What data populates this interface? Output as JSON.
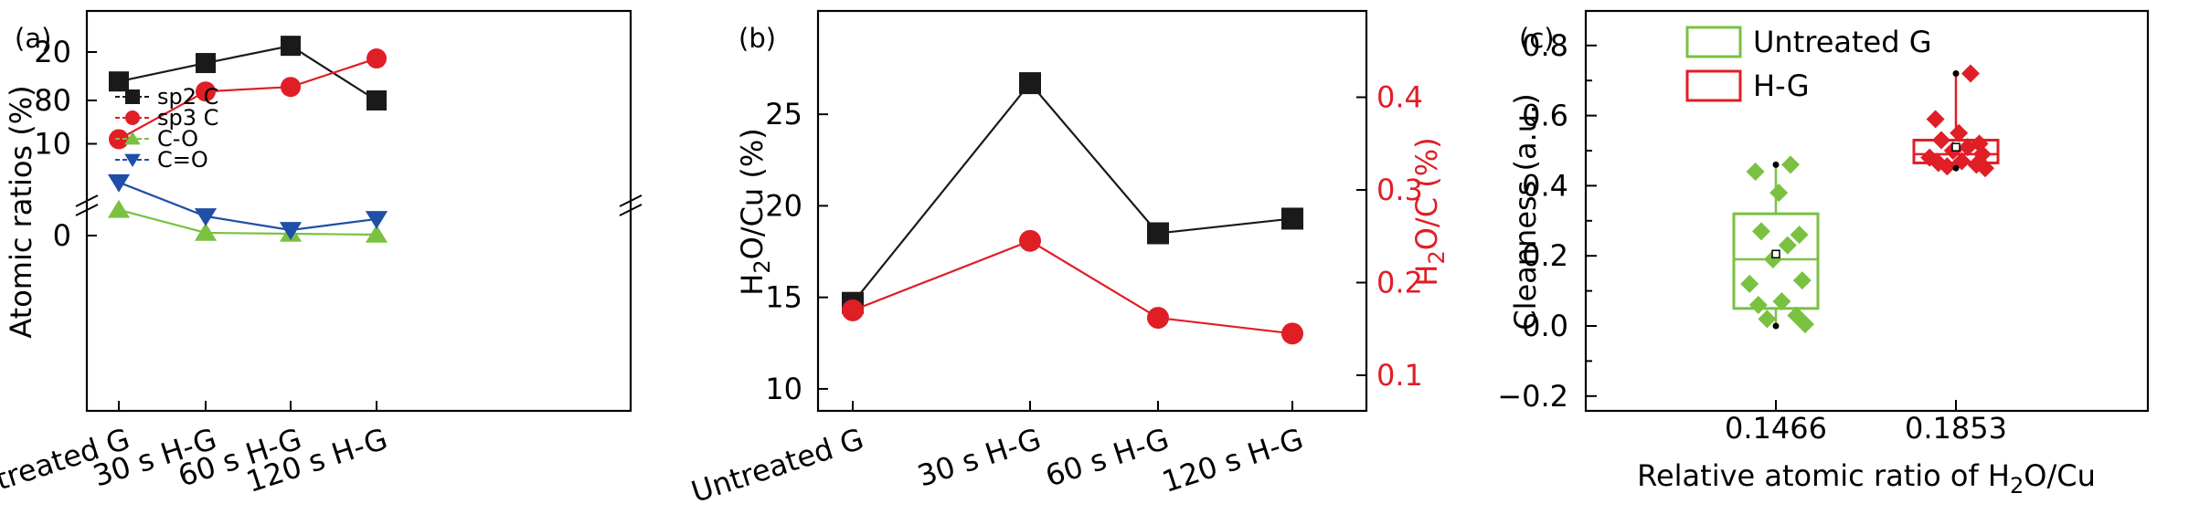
{
  "chart_data": [
    {
      "panel_label": "(a)",
      "type": "line",
      "categories": [
        "Untreated G",
        "30 s H-G",
        "60 s H-G",
        "120 s H-G"
      ],
      "ylabel": "Atomic ratios (%)",
      "axis_break": true,
      "y_ticks_lower": [
        "0",
        "10",
        "20"
      ],
      "y_ticks_upper": [
        "80"
      ],
      "series": [
        {
          "name": "sp2 C",
          "color": "#1a1a1a",
          "marker": "square",
          "segment": "upper",
          "values": [
            83.3,
            86.5,
            89.5,
            80.0
          ]
        },
        {
          "name": "sp3 C",
          "color": "#e01e26",
          "marker": "circle",
          "segment": "lower",
          "values": [
            10.5,
            15.7,
            16.2,
            19.3
          ]
        },
        {
          "name": "C-O",
          "color": "#7ac142",
          "marker": "triangle-up",
          "segment": "lower",
          "values": [
            2.8,
            0.3,
            0.2,
            0.1
          ]
        },
        {
          "name": "C=O",
          "color": "#1f4fa6",
          "marker": "triangle-down",
          "segment": "lower",
          "values": [
            5.8,
            2.1,
            0.6,
            1.8
          ]
        }
      ],
      "legend_position": "left"
    },
    {
      "panel_label": "(b)",
      "type": "line",
      "categories": [
        "Untreated G",
        "30 s H-G",
        "60 s H-G",
        "120 s H-G"
      ],
      "ylabel_left": {
        "main": "H",
        "sub": "2",
        "rest": "O/Cu (%)"
      },
      "ylabel_right": {
        "main": "H",
        "sub": "2",
        "rest": "O/C (%)"
      },
      "ylim_left": [
        8.5,
        28.5
      ],
      "ylim_right": [
        0.085,
        0.49
      ],
      "yticks_left": [
        10,
        15,
        20,
        25
      ],
      "yticks_right": [
        0.1,
        0.2,
        0.3,
        0.4
      ],
      "series": [
        {
          "axis": "left",
          "color": "#1a1a1a",
          "marker": "square",
          "values": [
            14.7,
            26.7,
            18.5,
            19.3
          ]
        },
        {
          "axis": "right",
          "color": "#e01e26",
          "marker": "circle",
          "values": [
            0.17,
            0.245,
            0.162,
            0.145
          ]
        }
      ]
    },
    {
      "panel_label": "(c)",
      "type": "box",
      "categories": [
        "0.1466",
        "0.1853"
      ],
      "xlabel": {
        "main": "Relative atomic ratio of H",
        "sub": "2",
        "rest": "O/Cu"
      },
      "ylabel": "Cleanness (a.u.)",
      "ylim": [
        -0.2,
        0.9
      ],
      "yticks": [
        "−0.2",
        "0.0",
        "0.2",
        "0.4",
        "0.6",
        "0.8"
      ],
      "legend_position": "top-left",
      "series": [
        {
          "name": "Untreated G",
          "color": "#7ac142",
          "box": {
            "q1": 0.05,
            "median": 0.19,
            "q3": 0.32,
            "mean": 0.205,
            "min": 0.0,
            "max": 0.46
          },
          "points": [
            0.46,
            0.44,
            0.38,
            0.27,
            0.26,
            0.23,
            0.19,
            0.13,
            0.12,
            0.07,
            0.06,
            0.03,
            0.02,
            0.005
          ]
        },
        {
          "name": "H-G",
          "color": "#e01e26",
          "box": {
            "q1": 0.465,
            "median": 0.49,
            "q3": 0.53,
            "mean": 0.51,
            "min": 0.45,
            "max": 0.72
          },
          "points": [
            0.72,
            0.59,
            0.55,
            0.53,
            0.52,
            0.51,
            0.5,
            0.49,
            0.48,
            0.47,
            0.465,
            0.46,
            0.455,
            0.45
          ]
        }
      ]
    }
  ]
}
